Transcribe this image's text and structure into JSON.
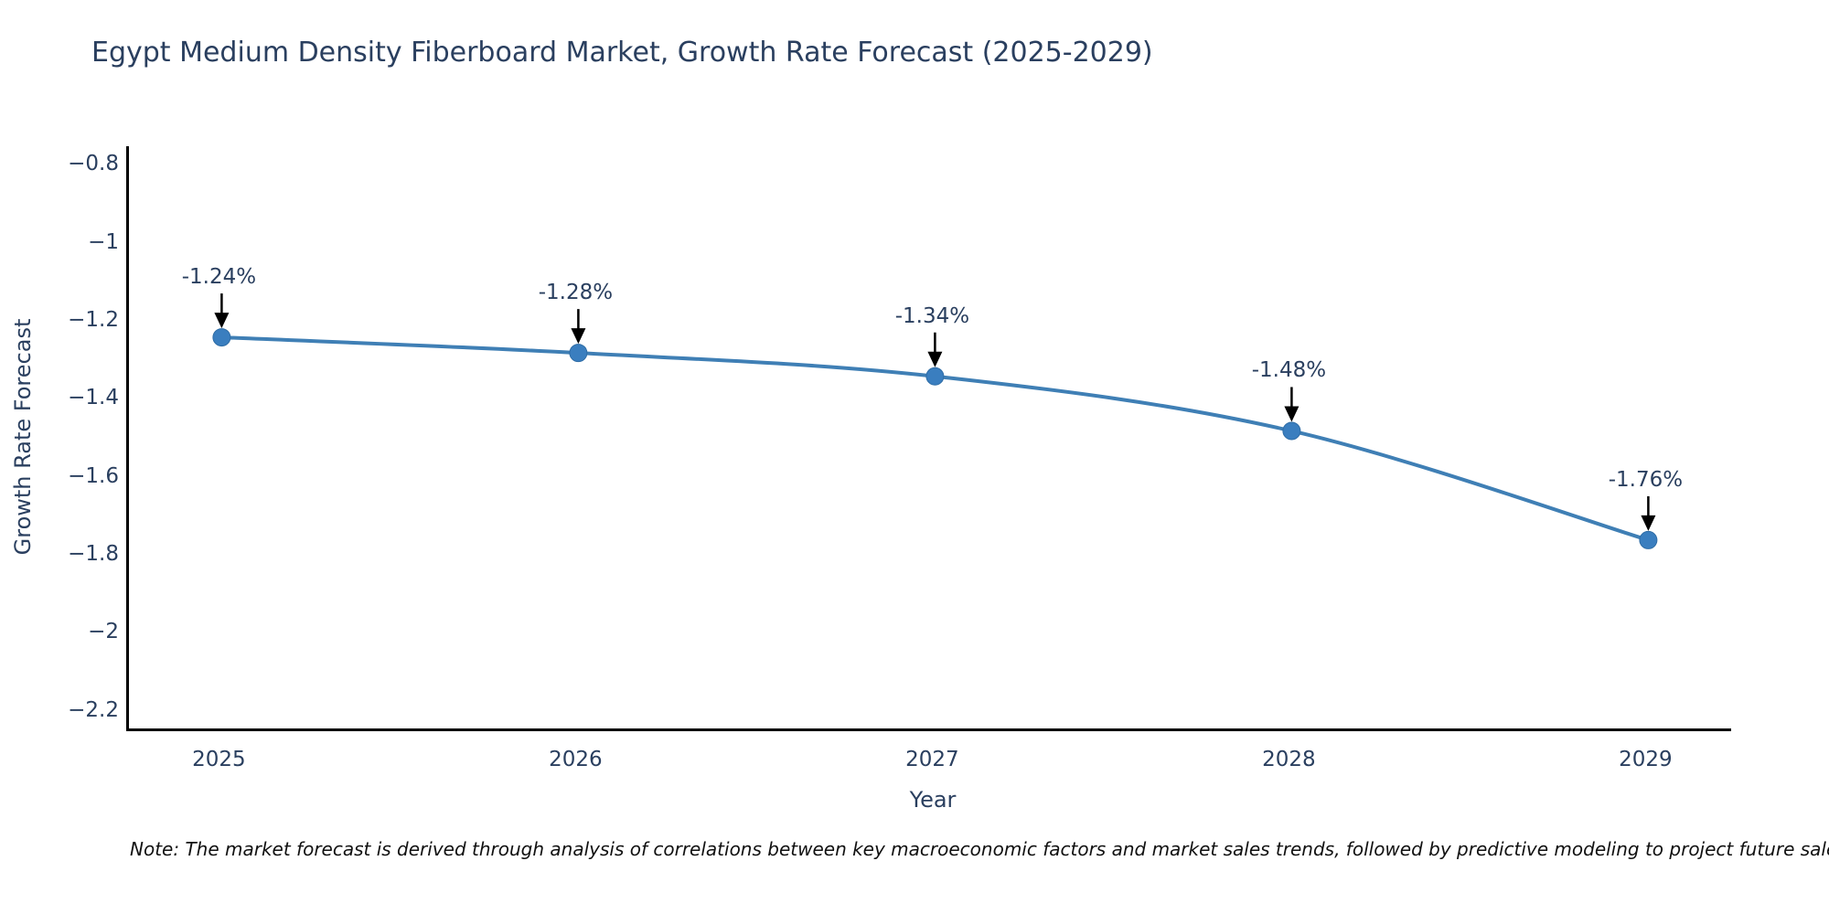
{
  "title": "Egypt Medium Density Fiberboard Market, Growth Rate Forecast (2025-2029)",
  "note": "Note: The market forecast is derived through analysis of correlations between key macroeconomic factors and market sales trends, followed by predictive modeling to project future sales.",
  "chart_data": {
    "type": "line",
    "title": "Egypt Medium Density Fiberboard Market, Growth Rate Forecast (2025-2029)",
    "xlabel": "Year",
    "ylabel": "Growth Rate Forecast",
    "x": [
      2025,
      2026,
      2027,
      2028,
      2029
    ],
    "y": [
      -1.24,
      -1.28,
      -1.34,
      -1.48,
      -1.76
    ],
    "series": [
      {
        "name": "Growth Rate Forecast",
        "values": [
          -1.24,
          -1.28,
          -1.34,
          -1.48,
          -1.76
        ]
      }
    ],
    "point_labels": [
      "-1.24%",
      "-1.28%",
      "-1.34%",
      "-1.48%",
      "-1.76%"
    ],
    "xlim": [
      2024.74,
      2029.24
    ],
    "ylim": [
      -2.25,
      -0.75
    ],
    "xticks": {
      "values": [
        2025,
        2026,
        2027,
        2028,
        2029
      ],
      "labels": [
        "2025",
        "2026",
        "2027",
        "2028",
        "2029"
      ]
    },
    "yticks": {
      "values": [
        -0.8,
        -1.0,
        -1.2,
        -1.4,
        -1.6,
        -1.8,
        -2.0,
        -2.2
      ],
      "labels": [
        "−0.8",
        "−1",
        "−1.2",
        "−1.4",
        "−1.6",
        "−1.8",
        "−2",
        "−2.2"
      ]
    },
    "line_shape": "spline",
    "grid": false,
    "legend_position": "none",
    "colors": {
      "line": "#3f7fb5",
      "marker_fill": "#3a7ebf",
      "marker_edge": "#2f6da6",
      "axis_line": "#000000",
      "chart_text": "#2a3f5f",
      "arrow": "#000000",
      "note_text": "#111111",
      "background": "#ffffff"
    }
  }
}
